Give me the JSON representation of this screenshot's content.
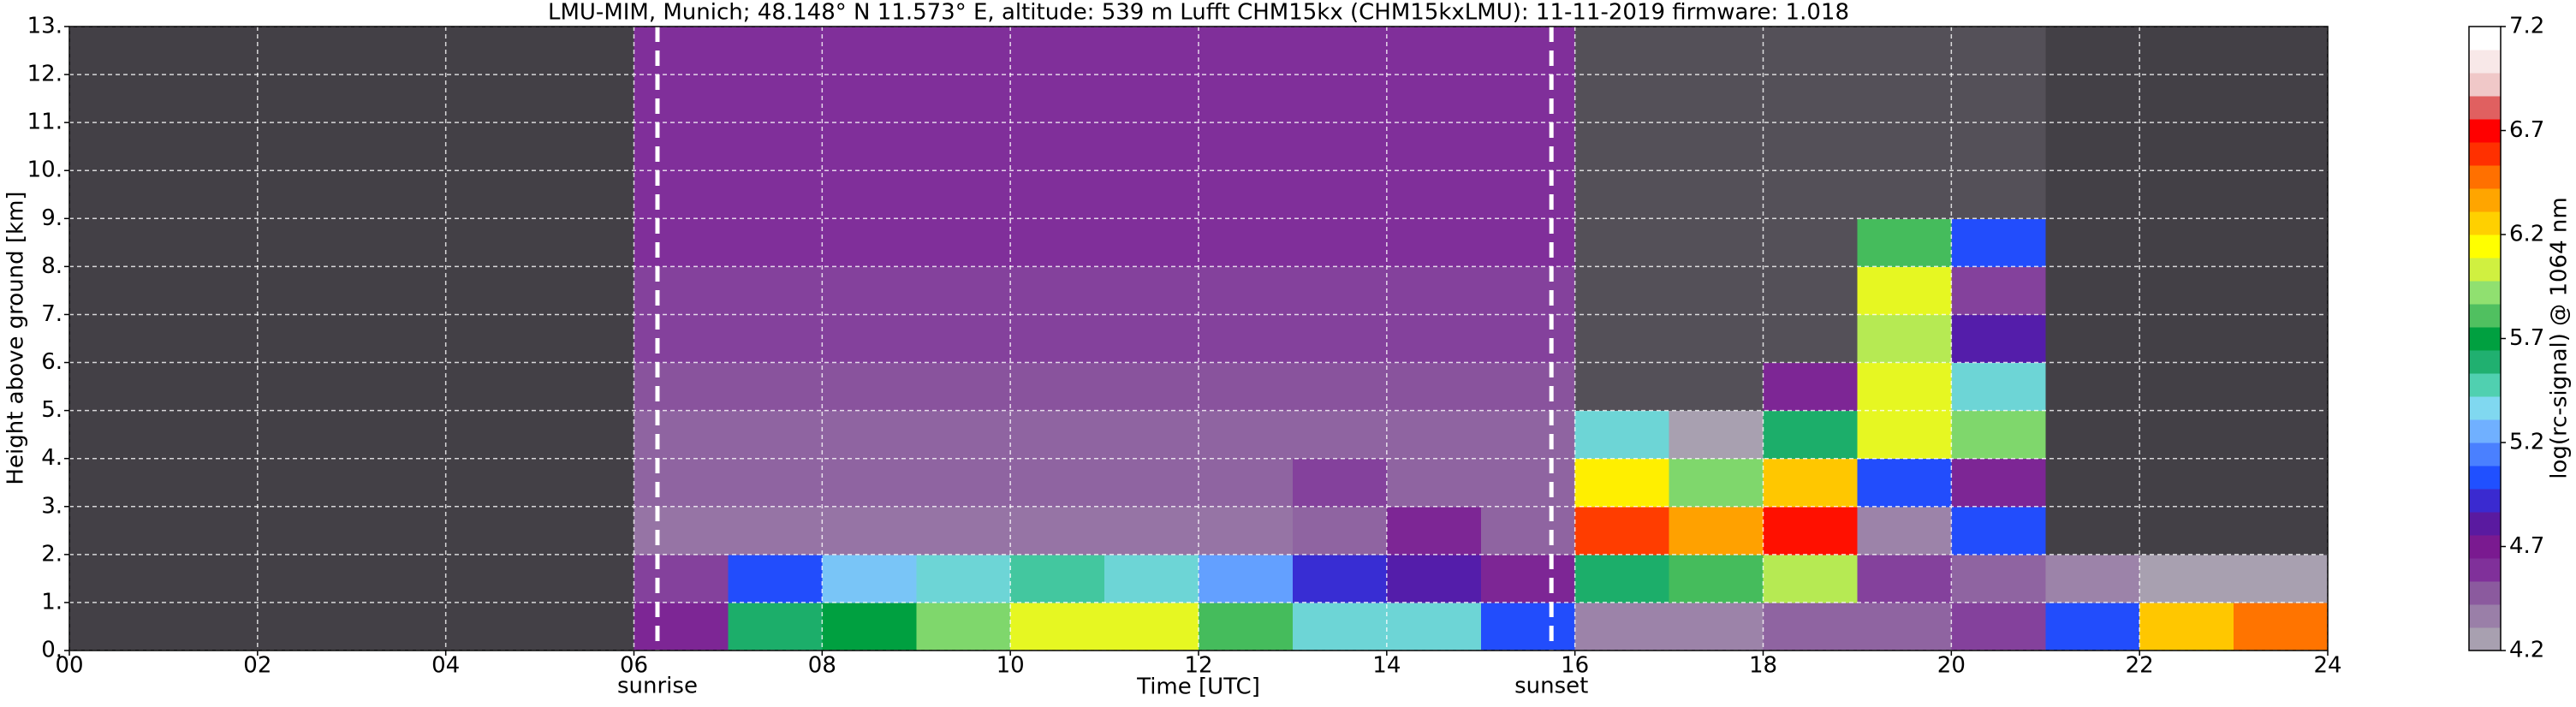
{
  "chart_data": {
    "type": "heatmap",
    "title": "LMU-MIM, Munich; 48.148° N 11.573° E, altitude: 539 m    Lufft CHM15kx (CHM15kxLMU): 11-11-2019    firmware: 1.018",
    "x_label": "Time [UTC]",
    "y_label": "Height above ground [km]",
    "colorbar_label": "log(rc-signal) @ 1064 nm",
    "xlim": [
      0,
      24
    ],
    "xticks": [
      {
        "value": 0,
        "label": "00"
      },
      {
        "value": 2,
        "label": "02"
      },
      {
        "value": 4,
        "label": "04"
      },
      {
        "value": 6,
        "label": "06"
      },
      {
        "value": 8,
        "label": "08"
      },
      10,
      12,
      14,
      16,
      18,
      20,
      22,
      24
    ],
    "ylim": [
      0,
      13
    ],
    "yticks": [
      {
        "value": 0,
        "label": "0."
      },
      {
        "value": 1,
        "label": "1."
      },
      {
        "value": 2,
        "label": "2."
      },
      {
        "value": 3,
        "label": "3."
      },
      {
        "value": 4,
        "label": "4."
      },
      {
        "value": 5,
        "label": "5."
      },
      {
        "value": 6,
        "label": "6."
      },
      {
        "value": 7,
        "label": "7."
      },
      {
        "value": 8,
        "label": "8."
      },
      {
        "value": 9,
        "label": "9."
      },
      {
        "value": 10,
        "label": "10."
      },
      {
        "value": 11,
        "label": "11."
      },
      {
        "value": 12,
        "label": "12."
      },
      {
        "value": 13,
        "label": "13."
      }
    ],
    "clim": [
      4.2,
      7.2
    ],
    "cticks": [
      4.2,
      4.7,
      5.2,
      5.7,
      6.2,
      6.7,
      7.2
    ],
    "grid": true,
    "colors": [
      "#a8a0b0",
      "#9a7fa8",
      "#8b5a9e",
      "#80309a",
      "#7a1a90",
      "#5a1aa0",
      "#3a2ad0",
      "#2050ff",
      "#4a80ff",
      "#70b0ff",
      "#80d8f0",
      "#50d0b0",
      "#20b070",
      "#00a040",
      "#50c060",
      "#90e070",
      "#d0f040",
      "#ffff00",
      "#ffd000",
      "#ffa500",
      "#ff7000",
      "#ff3000",
      "#ff0000",
      "#e06060",
      "#f0c8c8",
      "#f8e8e8",
      "#ffffff"
    ],
    "annotations": [
      {
        "x": 6.25,
        "label": "sunrise"
      },
      {
        "x": 15.75,
        "label": "sunset"
      }
    ],
    "xbins": [
      0,
      1,
      2,
      3,
      4,
      5,
      6,
      7,
      8,
      9,
      10,
      11,
      12,
      13,
      14,
      15,
      16,
      17,
      18,
      19,
      20,
      21,
      22,
      23,
      24
    ],
    "ybins": [
      0,
      1,
      2,
      3,
      4,
      5,
      6,
      7,
      8,
      9,
      10,
      11,
      12,
      13
    ],
    "z": [
      [
        4.1,
        4.1,
        4.1,
        4.1,
        4.1,
        4.1,
        4.6,
        5.6,
        5.7,
        5.9,
        6.1,
        6.1,
        5.8,
        5.4,
        5.4,
        5.0,
        4.3,
        4.3,
        4.4,
        4.4,
        4.5,
        5.0,
        6.3,
        6.5
      ],
      [
        4.1,
        4.1,
        4.1,
        4.1,
        4.1,
        4.1,
        4.5,
        5.0,
        5.3,
        5.4,
        5.5,
        5.4,
        5.2,
        4.9,
        4.8,
        4.6,
        5.6,
        5.8,
        6.0,
        4.5,
        4.4,
        4.3,
        4.2,
        4.2
      ],
      [
        4.1,
        4.1,
        4.1,
        4.1,
        4.1,
        4.1,
        4.35,
        4.35,
        4.35,
        4.35,
        4.35,
        4.35,
        4.35,
        4.4,
        4.6,
        4.4,
        6.6,
        6.4,
        6.7,
        4.3,
        5.0,
        4.1,
        4.1,
        4.1
      ],
      [
        4.1,
        4.1,
        4.1,
        4.1,
        4.1,
        4.1,
        4.4,
        4.4,
        4.4,
        4.4,
        4.4,
        4.4,
        4.4,
        4.5,
        4.4,
        4.4,
        6.2,
        5.9,
        6.3,
        5.0,
        4.6,
        4.1,
        4.1,
        4.1
      ],
      [
        4.1,
        4.1,
        4.1,
        4.1,
        4.1,
        4.1,
        4.4,
        4.4,
        4.4,
        4.4,
        4.4,
        4.4,
        4.4,
        4.4,
        4.4,
        4.4,
        5.4,
        4.2,
        5.6,
        6.1,
        5.9,
        4.1,
        4.1,
        4.1
      ],
      [
        4.1,
        4.1,
        4.1,
        4.1,
        4.1,
        4.1,
        4.45,
        4.45,
        4.45,
        4.45,
        4.45,
        4.45,
        4.45,
        4.45,
        4.45,
        4.45,
        4.15,
        4.15,
        4.6,
        6.1,
        5.4,
        4.1,
        4.1,
        4.1
      ],
      [
        4.1,
        4.1,
        4.1,
        4.1,
        4.1,
        4.1,
        4.5,
        4.5,
        4.5,
        4.5,
        4.5,
        4.5,
        4.5,
        4.5,
        4.5,
        4.5,
        4.15,
        4.15,
        4.15,
        6.0,
        4.8,
        4.1,
        4.1,
        4.1
      ],
      [
        4.1,
        4.1,
        4.1,
        4.1,
        4.1,
        4.1,
        4.5,
        4.5,
        4.5,
        4.5,
        4.5,
        4.5,
        4.5,
        4.5,
        4.5,
        4.5,
        4.15,
        4.15,
        4.15,
        6.1,
        4.5,
        4.1,
        4.1,
        4.1
      ],
      [
        4.1,
        4.1,
        4.1,
        4.1,
        4.1,
        4.1,
        4.55,
        4.55,
        4.55,
        4.55,
        4.55,
        4.55,
        4.55,
        4.55,
        4.55,
        4.55,
        4.15,
        4.15,
        4.15,
        5.8,
        5.0,
        4.1,
        4.1,
        4.1
      ],
      [
        4.1,
        4.1,
        4.1,
        4.1,
        4.1,
        4.1,
        4.55,
        4.55,
        4.55,
        4.55,
        4.55,
        4.55,
        4.55,
        4.55,
        4.55,
        4.55,
        4.15,
        4.15,
        4.15,
        4.15,
        4.15,
        4.1,
        4.1,
        4.1
      ],
      [
        4.1,
        4.1,
        4.1,
        4.1,
        4.1,
        4.1,
        4.55,
        4.55,
        4.55,
        4.55,
        4.55,
        4.55,
        4.55,
        4.55,
        4.55,
        4.55,
        4.15,
        4.15,
        4.15,
        4.15,
        4.15,
        4.1,
        4.1,
        4.1
      ],
      [
        4.1,
        4.1,
        4.1,
        4.1,
        4.1,
        4.1,
        4.55,
        4.55,
        4.55,
        4.55,
        4.55,
        4.55,
        4.55,
        4.55,
        4.55,
        4.55,
        4.15,
        4.15,
        4.15,
        4.15,
        4.15,
        4.1,
        4.1,
        4.1
      ],
      [
        4.1,
        4.1,
        4.1,
        4.1,
        4.1,
        4.1,
        4.55,
        4.55,
        4.55,
        4.55,
        4.55,
        4.55,
        4.55,
        4.55,
        4.55,
        4.55,
        4.15,
        4.15,
        4.15,
        4.15,
        4.15,
        4.1,
        4.1,
        4.1
      ]
    ]
  }
}
